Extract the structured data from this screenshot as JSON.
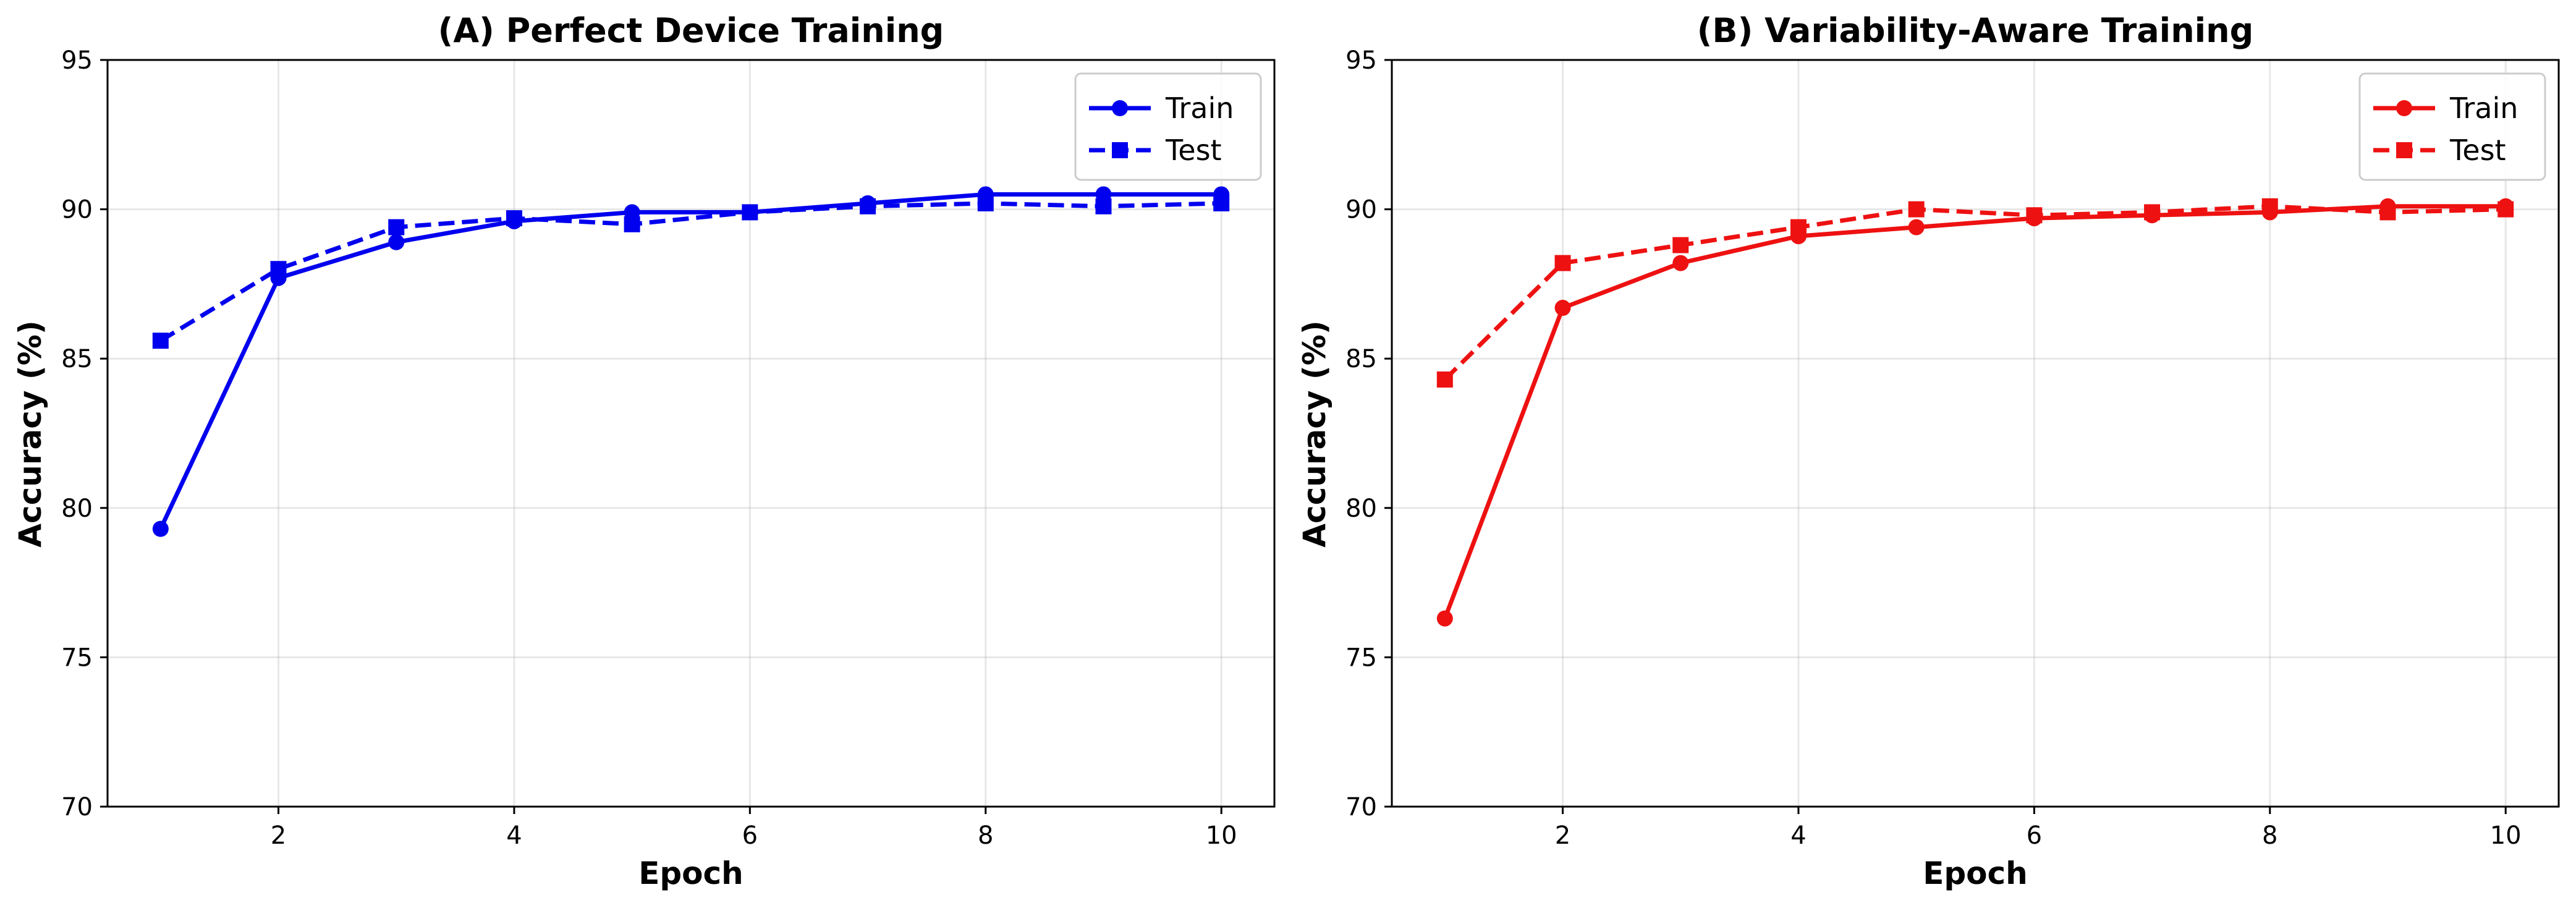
{
  "chart_data": [
    {
      "type": "line",
      "title": "(A) Perfect Device Training",
      "xlabel": "Epoch",
      "ylabel": "Accuracy (%)",
      "xlim": [
        0.55,
        10.45
      ],
      "ylim": [
        70,
        95
      ],
      "xticks": [
        2,
        4,
        6,
        8,
        10
      ],
      "yticks": [
        70,
        75,
        80,
        85,
        90,
        95
      ],
      "grid": true,
      "legend": "top-right",
      "color": "#0000ee",
      "series": [
        {
          "name": "Train",
          "marker": "circle",
          "dash": "solid",
          "x": [
            1,
            2,
            3,
            4,
            5,
            6,
            7,
            8,
            9,
            10
          ],
          "y": [
            79.3,
            87.7,
            88.9,
            89.6,
            89.9,
            89.9,
            90.2,
            90.5,
            90.5,
            90.5
          ]
        },
        {
          "name": "Test",
          "marker": "square",
          "dash": "dashed",
          "x": [
            1,
            2,
            3,
            4,
            5,
            6,
            7,
            8,
            9,
            10
          ],
          "y": [
            85.6,
            88.0,
            89.4,
            89.7,
            89.5,
            89.9,
            90.1,
            90.2,
            90.1,
            90.2
          ]
        }
      ]
    },
    {
      "type": "line",
      "title": "(B) Variability-Aware Training",
      "xlabel": "Epoch",
      "ylabel": "Accuracy (%)",
      "xlim": [
        0.55,
        10.45
      ],
      "ylim": [
        70,
        95
      ],
      "xticks": [
        2,
        4,
        6,
        8,
        10
      ],
      "yticks": [
        70,
        75,
        80,
        85,
        90,
        95
      ],
      "grid": true,
      "legend": "top-right",
      "color": "#ee1111",
      "series": [
        {
          "name": "Train",
          "marker": "circle",
          "dash": "solid",
          "x": [
            1,
            2,
            3,
            4,
            5,
            6,
            7,
            8,
            9,
            10
          ],
          "y": [
            76.3,
            86.7,
            88.2,
            89.1,
            89.4,
            89.7,
            89.8,
            89.9,
            90.1,
            90.1
          ]
        },
        {
          "name": "Test",
          "marker": "square",
          "dash": "dashed",
          "x": [
            1,
            2,
            3,
            4,
            5,
            6,
            7,
            8,
            9,
            10
          ],
          "y": [
            84.3,
            88.2,
            88.8,
            89.4,
            90.0,
            89.8,
            89.9,
            90.1,
            89.9,
            90.0
          ]
        }
      ]
    }
  ]
}
